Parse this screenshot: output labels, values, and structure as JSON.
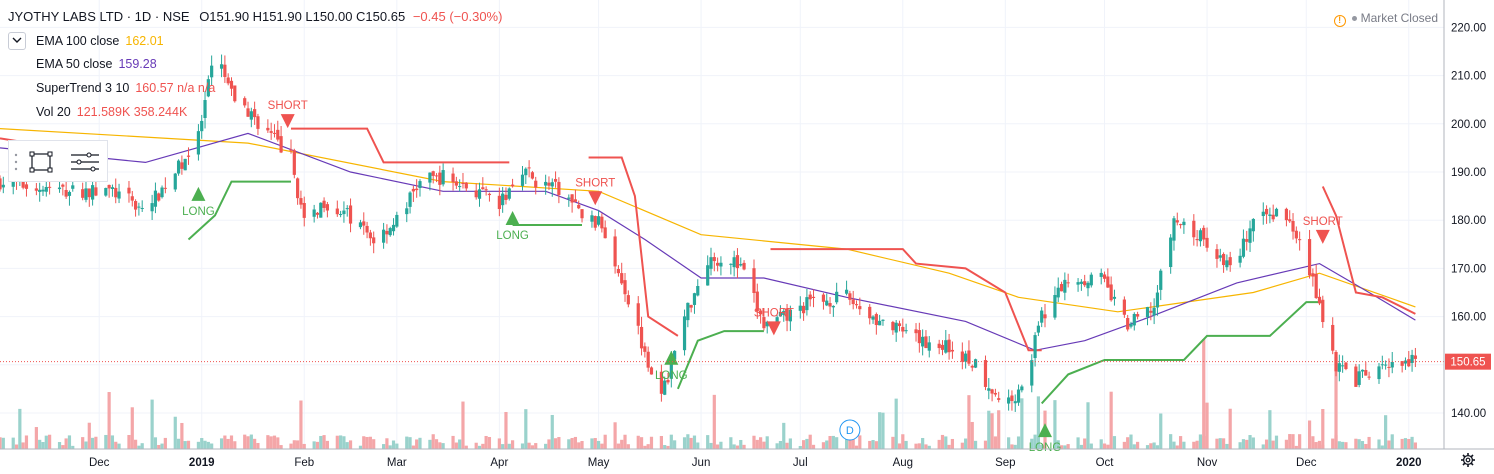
{
  "header": {
    "symbol": "JYOTHY LABS LTD · 1D · NSE",
    "ohlc": "O151.90  H151.90  L150.00  C150.65",
    "change": "−0.45 (−0.30%)"
  },
  "status": {
    "market": "Market Closed",
    "icon": "!"
  },
  "indicators": [
    {
      "label": "EMA 100 close",
      "value": "162.01",
      "color": "#f7b500"
    },
    {
      "label": "EMA 50 close",
      "value": "159.28",
      "color": "#673ab7"
    },
    {
      "label": "SuperTrend 3 10",
      "value": "160.57  n/a  n/a",
      "color": "#ef5350"
    },
    {
      "label": "Vol 20",
      "value": "121.589K  358.244K",
      "color": "#ef5350"
    }
  ],
  "colors": {
    "up": "#26a69a",
    "down": "#ef5350",
    "ema100": "#f7b500",
    "ema50": "#673ab7",
    "st_up": "#4caf50",
    "st_down": "#ef5350",
    "vol_up": "#9ad2cc",
    "vol_down": "#f4a6a8"
  },
  "chart_data": {
    "type": "candlestick",
    "y_axis": {
      "min": 135,
      "max": 222,
      "ticks": [
        140,
        150,
        160,
        170,
        180,
        190,
        200,
        210,
        220
      ],
      "tick_labels": [
        "140.00",
        "150.00",
        "160.00",
        "170.00",
        "180.00",
        "190.00",
        "200.00",
        "210.00",
        "220.00"
      ]
    },
    "x_ticks": [
      {
        "label": "Dec",
        "date": "2018-12-01"
      },
      {
        "label": "2019",
        "date": "2019-01-01"
      },
      {
        "label": "Feb",
        "date": "2019-02-01"
      },
      {
        "label": "Mar",
        "date": "2019-03-01"
      },
      {
        "label": "Apr",
        "date": "2019-04-01"
      },
      {
        "label": "May",
        "date": "2019-05-01"
      },
      {
        "label": "Jun",
        "date": "2019-06-01"
      },
      {
        "label": "Jul",
        "date": "2019-07-01"
      },
      {
        "label": "Aug",
        "date": "2019-08-01"
      },
      {
        "label": "Sep",
        "date": "2019-09-01"
      },
      {
        "label": "Oct",
        "date": "2019-10-01"
      },
      {
        "label": "Nov",
        "date": "2019-11-01"
      },
      {
        "label": "Dec",
        "date": "2019-12-01"
      },
      {
        "label": "2020",
        "date": "2020-01-01"
      }
    ],
    "last_price": "150.65",
    "close_path": [
      [
        "2018-11-01",
        188
      ],
      [
        "2018-11-20",
        186
      ],
      [
        "2018-12-05",
        186
      ],
      [
        "2018-12-15",
        182
      ],
      [
        "2018-12-24",
        190
      ],
      [
        "2018-12-31",
        197
      ],
      [
        "2019-01-05",
        215
      ],
      [
        "2019-01-10",
        206
      ],
      [
        "2019-01-20",
        199
      ],
      [
        "2019-01-28",
        193
      ],
      [
        "2019-02-01",
        179
      ],
      [
        "2019-02-07",
        184
      ],
      [
        "2019-02-14",
        181
      ],
      [
        "2019-02-22",
        176
      ],
      [
        "2019-03-01",
        180
      ],
      [
        "2019-03-08",
        188
      ],
      [
        "2019-03-15",
        189
      ],
      [
        "2019-03-25",
        186
      ],
      [
        "2019-04-01",
        183
      ],
      [
        "2019-04-08",
        191
      ],
      [
        "2019-04-12",
        188
      ],
      [
        "2019-04-20",
        186
      ],
      [
        "2019-04-26",
        181
      ],
      [
        "2019-05-02",
        179
      ],
      [
        "2019-05-08",
        168
      ],
      [
        "2019-05-14",
        155
      ],
      [
        "2019-05-20",
        143
      ],
      [
        "2019-05-27",
        160
      ],
      [
        "2019-06-03",
        172
      ],
      [
        "2019-06-10",
        172
      ],
      [
        "2019-06-14",
        169
      ],
      [
        "2019-06-20",
        158
      ],
      [
        "2019-06-27",
        160
      ],
      [
        "2019-07-04",
        163
      ],
      [
        "2019-07-15",
        164
      ],
      [
        "2019-07-25",
        159
      ],
      [
        "2019-08-05",
        155
      ],
      [
        "2019-08-14",
        154
      ],
      [
        "2019-08-23",
        150
      ],
      [
        "2019-09-01",
        141
      ],
      [
        "2019-09-07",
        147
      ],
      [
        "2019-09-12",
        160
      ],
      [
        "2019-09-20",
        168
      ],
      [
        "2019-09-30",
        168
      ],
      [
        "2019-10-08",
        158
      ],
      [
        "2019-10-16",
        162
      ],
      [
        "2019-10-22",
        180
      ],
      [
        "2019-10-31",
        176
      ],
      [
        "2019-11-08",
        170
      ],
      [
        "2019-11-15",
        179
      ],
      [
        "2019-11-22",
        182
      ],
      [
        "2019-11-29",
        177
      ],
      [
        "2019-12-04",
        165
      ],
      [
        "2019-12-10",
        150
      ],
      [
        "2019-12-16",
        147
      ],
      [
        "2019-12-24",
        149
      ],
      [
        "2020-01-03",
        150.65
      ]
    ],
    "ema100_path": [
      [
        "2018-11-01",
        199
      ],
      [
        "2019-01-15",
        196
      ],
      [
        "2019-03-15",
        188
      ],
      [
        "2019-05-01",
        186
      ],
      [
        "2019-06-01",
        177
      ],
      [
        "2019-07-15",
        174
      ],
      [
        "2019-08-15",
        169
      ],
      [
        "2019-09-05",
        164
      ],
      [
        "2019-10-05",
        161
      ],
      [
        "2019-11-15",
        165
      ],
      [
        "2019-12-05",
        169
      ],
      [
        "2020-01-03",
        162.01
      ]
    ],
    "ema50_path": [
      [
        "2018-11-01",
        195
      ],
      [
        "2018-12-15",
        192
      ],
      [
        "2019-01-15",
        198
      ],
      [
        "2019-02-15",
        190
      ],
      [
        "2019-03-15",
        186
      ],
      [
        "2019-04-15",
        186
      ],
      [
        "2019-05-01",
        182
      ],
      [
        "2019-05-15",
        176
      ],
      [
        "2019-06-01",
        168
      ],
      [
        "2019-06-20",
        168
      ],
      [
        "2019-07-15",
        164
      ],
      [
        "2019-08-20",
        159
      ],
      [
        "2019-09-10",
        153
      ],
      [
        "2019-09-25",
        155
      ],
      [
        "2019-10-15",
        160
      ],
      [
        "2019-11-10",
        167
      ],
      [
        "2019-12-05",
        171
      ],
      [
        "2019-12-20",
        165
      ],
      [
        "2020-01-03",
        159.28
      ]
    ],
    "supertrend_segments": [
      {
        "trend": "down",
        "points": [
          [
            "2018-11-01",
            197
          ],
          [
            "2018-11-10",
            196
          ],
          [
            "2018-11-15",
            193
          ],
          [
            "2018-11-30",
            193
          ]
        ]
      },
      {
        "trend": "up",
        "points": [
          [
            "2018-12-28",
            176
          ],
          [
            "2019-01-05",
            181
          ],
          [
            "2019-01-10",
            188
          ],
          [
            "2019-01-28",
            188
          ]
        ]
      },
      {
        "trend": "down",
        "points": [
          [
            "2019-01-28",
            199
          ],
          [
            "2019-02-05",
            199
          ],
          [
            "2019-02-20",
            199
          ],
          [
            "2019-02-25",
            192
          ],
          [
            "2019-04-04",
            192
          ]
        ]
      },
      {
        "trend": "up",
        "points": [
          [
            "2019-04-05",
            179
          ],
          [
            "2019-04-26",
            179
          ]
        ]
      },
      {
        "trend": "down",
        "points": [
          [
            "2019-04-28",
            193
          ],
          [
            "2019-05-08",
            193
          ],
          [
            "2019-05-12",
            185
          ],
          [
            "2019-05-16",
            160
          ],
          [
            "2019-05-25",
            156
          ]
        ]
      },
      {
        "trend": "up",
        "points": [
          [
            "2019-05-25",
            145
          ],
          [
            "2019-05-31",
            155
          ],
          [
            "2019-06-08",
            157
          ],
          [
            "2019-06-20",
            157
          ]
        ]
      },
      {
        "trend": "down",
        "points": [
          [
            "2019-06-22",
            174
          ],
          [
            "2019-08-01",
            174
          ],
          [
            "2019-08-05",
            171
          ],
          [
            "2019-08-20",
            170
          ],
          [
            "2019-09-01",
            165
          ],
          [
            "2019-09-08",
            153
          ],
          [
            "2019-09-12",
            153
          ]
        ]
      },
      {
        "trend": "up",
        "points": [
          [
            "2019-09-12",
            142
          ],
          [
            "2019-09-20",
            148
          ],
          [
            "2019-10-01",
            151
          ],
          [
            "2019-10-25",
            151
          ],
          [
            "2019-11-01",
            156
          ],
          [
            "2019-11-20",
            156
          ],
          [
            "2019-12-01",
            163
          ],
          [
            "2019-12-06",
            163
          ]
        ]
      },
      {
        "trend": "down",
        "points": [
          [
            "2019-12-06",
            187
          ],
          [
            "2019-12-10",
            181
          ],
          [
            "2019-12-16",
            165
          ],
          [
            "2019-12-24",
            164
          ],
          [
            "2020-01-03",
            160.57
          ]
        ]
      }
    ],
    "signals": [
      {
        "label": "LONG",
        "type": "long",
        "date": "2018-12-31",
        "price": 184
      },
      {
        "label": "SHORT",
        "type": "short",
        "date": "2019-01-27",
        "price": 202
      },
      {
        "label": "LONG",
        "type": "long",
        "date": "2019-04-05",
        "price": 179
      },
      {
        "label": "SHORT",
        "type": "short",
        "date": "2019-04-30",
        "price": 186
      },
      {
        "label": "LONG",
        "type": "long",
        "date": "2019-05-23",
        "price": 150
      },
      {
        "label": "SHORT",
        "type": "short",
        "date": "2019-06-23",
        "price": 159
      },
      {
        "label": "LONG",
        "type": "long",
        "date": "2019-09-13",
        "price": 135
      },
      {
        "label": "SHORT",
        "type": "short",
        "date": "2019-12-06",
        "price": 178
      }
    ],
    "event_marker": {
      "label": "D",
      "date": "2019-07-16"
    }
  }
}
